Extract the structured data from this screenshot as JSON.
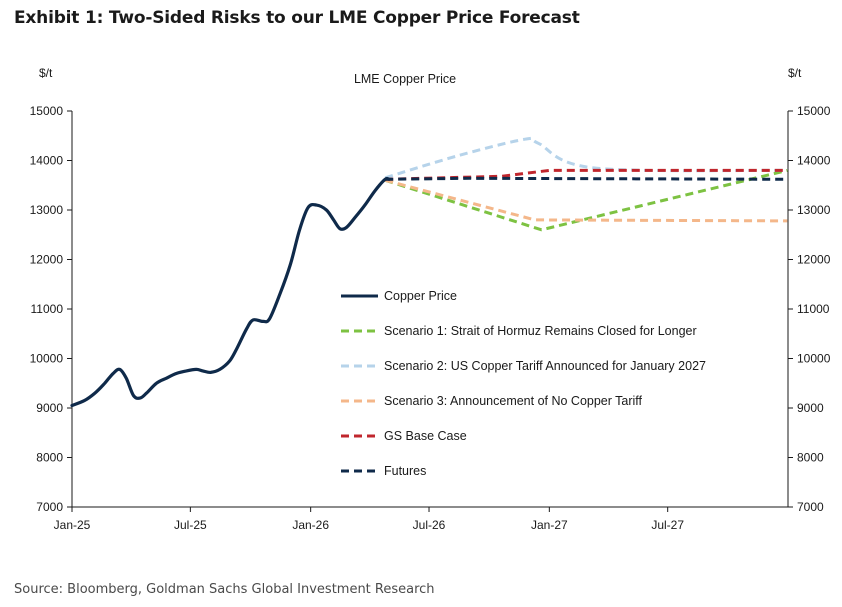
{
  "header": {
    "title": "Exhibit 1: Two-Sided Risks to our LME Copper Price Forecast"
  },
  "footer": {
    "source": "Source: Bloomberg, Goldman Sachs Global Investment Research"
  },
  "chart_data": {
    "type": "line",
    "title": "LME Copper Price",
    "ylabel_left": "$/t",
    "ylabel_right": "$/t",
    "ylim": [
      7000,
      15000
    ],
    "yticks": [
      7000,
      8000,
      9000,
      10000,
      11000,
      12000,
      13000,
      14000,
      15000
    ],
    "xlim": [
      "2025-01-01",
      "2028-01-01"
    ],
    "xticks": [
      {
        "label": "Jan-25",
        "date": "2025-01-01"
      },
      {
        "label": "Jul-25",
        "date": "2025-07-01"
      },
      {
        "label": "Jan-26",
        "date": "2026-01-01"
      },
      {
        "label": "Jul-26",
        "date": "2026-07-01"
      },
      {
        "label": "Jan-27",
        "date": "2027-01-01"
      },
      {
        "label": "Jul-27",
        "date": "2027-07-01"
      }
    ],
    "legend_position": "center",
    "series": [
      {
        "name": "Copper Price",
        "color": "#0f2a4a",
        "dash": "solid",
        "points": [
          [
            "2025-01-01",
            9050
          ],
          [
            "2025-01-20",
            9150
          ],
          [
            "2025-02-05",
            9300
          ],
          [
            "2025-02-20",
            9500
          ],
          [
            "2025-03-05",
            9700
          ],
          [
            "2025-03-15",
            9780
          ],
          [
            "2025-03-25",
            9600
          ],
          [
            "2025-04-05",
            9250
          ],
          [
            "2025-04-15",
            9200
          ],
          [
            "2025-04-25",
            9300
          ],
          [
            "2025-05-10",
            9500
          ],
          [
            "2025-05-25",
            9600
          ],
          [
            "2025-06-10",
            9700
          ],
          [
            "2025-06-25",
            9750
          ],
          [
            "2025-07-10",
            9780
          ],
          [
            "2025-07-20",
            9750
          ],
          [
            "2025-08-01",
            9720
          ],
          [
            "2025-08-15",
            9780
          ],
          [
            "2025-08-30",
            9950
          ],
          [
            "2025-09-10",
            10200
          ],
          [
            "2025-09-25",
            10600
          ],
          [
            "2025-10-05",
            10780
          ],
          [
            "2025-10-20",
            10750
          ],
          [
            "2025-10-30",
            10800
          ],
          [
            "2025-11-15",
            11300
          ],
          [
            "2025-12-01",
            11900
          ],
          [
            "2025-12-15",
            12600
          ],
          [
            "2025-12-28",
            13050
          ],
          [
            "2026-01-10",
            13100
          ],
          [
            "2026-01-25",
            13000
          ],
          [
            "2026-02-05",
            12800
          ],
          [
            "2026-02-15",
            12620
          ],
          [
            "2026-02-25",
            12650
          ],
          [
            "2026-03-10",
            12850
          ],
          [
            "2026-03-25",
            13100
          ],
          [
            "2026-04-10",
            13400
          ],
          [
            "2026-04-25",
            13620
          ],
          [
            "2026-05-01",
            13620
          ]
        ]
      },
      {
        "name": "Scenario 1: Strait of Hormuz Remains Closed for Longer",
        "color": "#7dc242",
        "dash": "dashed",
        "points": [
          [
            "2026-04-25",
            13600
          ],
          [
            "2026-12-20",
            12600
          ],
          [
            "2027-12-31",
            13800
          ]
        ]
      },
      {
        "name": "Scenario 2: US Copper Tariff Announced for January 2027",
        "color": "#b6d3ea",
        "dash": "dashed",
        "points": [
          [
            "2026-04-25",
            13650
          ],
          [
            "2026-08-15",
            14100
          ],
          [
            "2026-11-25",
            14430
          ],
          [
            "2026-12-15",
            14350
          ],
          [
            "2027-03-10",
            13850
          ],
          [
            "2027-12-31",
            13800
          ]
        ]
      },
      {
        "name": "Scenario 3: Announcement of No Copper Tariff",
        "color": "#f4b78a",
        "dash": "dashed",
        "points": [
          [
            "2026-04-25",
            13600
          ],
          [
            "2026-12-10",
            12800
          ],
          [
            "2027-12-31",
            12780
          ]
        ]
      },
      {
        "name": "GS Base Case",
        "color": "#c0262d",
        "dash": "dashed",
        "points": [
          [
            "2026-04-25",
            13620
          ],
          [
            "2026-10-20",
            13680
          ],
          [
            "2027-01-01",
            13800
          ],
          [
            "2027-12-31",
            13800
          ]
        ]
      },
      {
        "name": "Futures",
        "color": "#0f2a4a",
        "dash": "dashed",
        "points": [
          [
            "2026-04-25",
            13620
          ],
          [
            "2026-09-01",
            13640
          ],
          [
            "2027-12-31",
            13620
          ]
        ]
      }
    ]
  }
}
